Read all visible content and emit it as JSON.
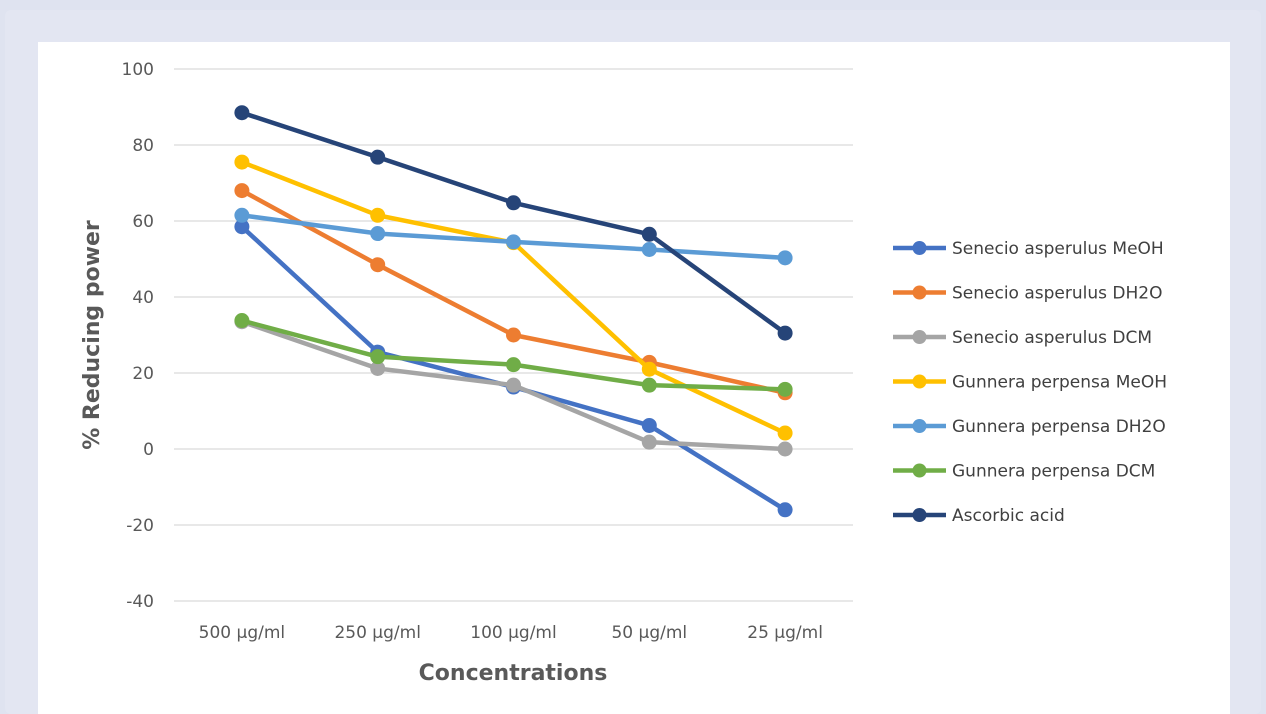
{
  "chart_data": {
    "type": "line",
    "title": "",
    "xlabel": "Concentrations",
    "ylabel": "% Reducing power",
    "categories": [
      "500 µg/ml",
      "250 µg/ml",
      "100 µg/ml",
      "50 µg/ml",
      "25 µg/ml"
    ],
    "ylim": [
      -40,
      100
    ],
    "yticks": [
      -40,
      -20,
      0,
      20,
      40,
      60,
      80,
      100
    ],
    "grid": true,
    "legend_position": "right",
    "series": [
      {
        "name": "Senecio asperulus MeOH",
        "color": "#4472c4",
        "values": [
          58.5,
          25.5,
          16.3,
          6.2,
          -16
        ]
      },
      {
        "name": "Senecio asperulus DH2O",
        "color": "#ed7d31",
        "values": [
          68,
          48.5,
          30,
          22.8,
          14.8
        ]
      },
      {
        "name": "Senecio asperulus DCM",
        "color": "#a5a5a5",
        "values": [
          33.5,
          21.2,
          16.8,
          1.8,
          0
        ]
      },
      {
        "name": "Gunnera perpensa  MeOH",
        "color": "#ffc000",
        "values": [
          75.5,
          61.5,
          54.3,
          21,
          4.2
        ]
      },
      {
        "name": "Gunnera perpensa  DH2O",
        "color": "#5b9bd5",
        "values": [
          61.5,
          56.7,
          54.5,
          52.5,
          50.3
        ]
      },
      {
        "name": "Gunnera perpensa  DCM",
        "color": "#70ad47",
        "values": [
          33.8,
          24.3,
          22.2,
          16.8,
          15.7
        ]
      },
      {
        "name": "Ascorbic acid",
        "color": "#264478",
        "values": [
          88.5,
          76.8,
          64.8,
          56.5,
          30.5
        ]
      }
    ]
  }
}
